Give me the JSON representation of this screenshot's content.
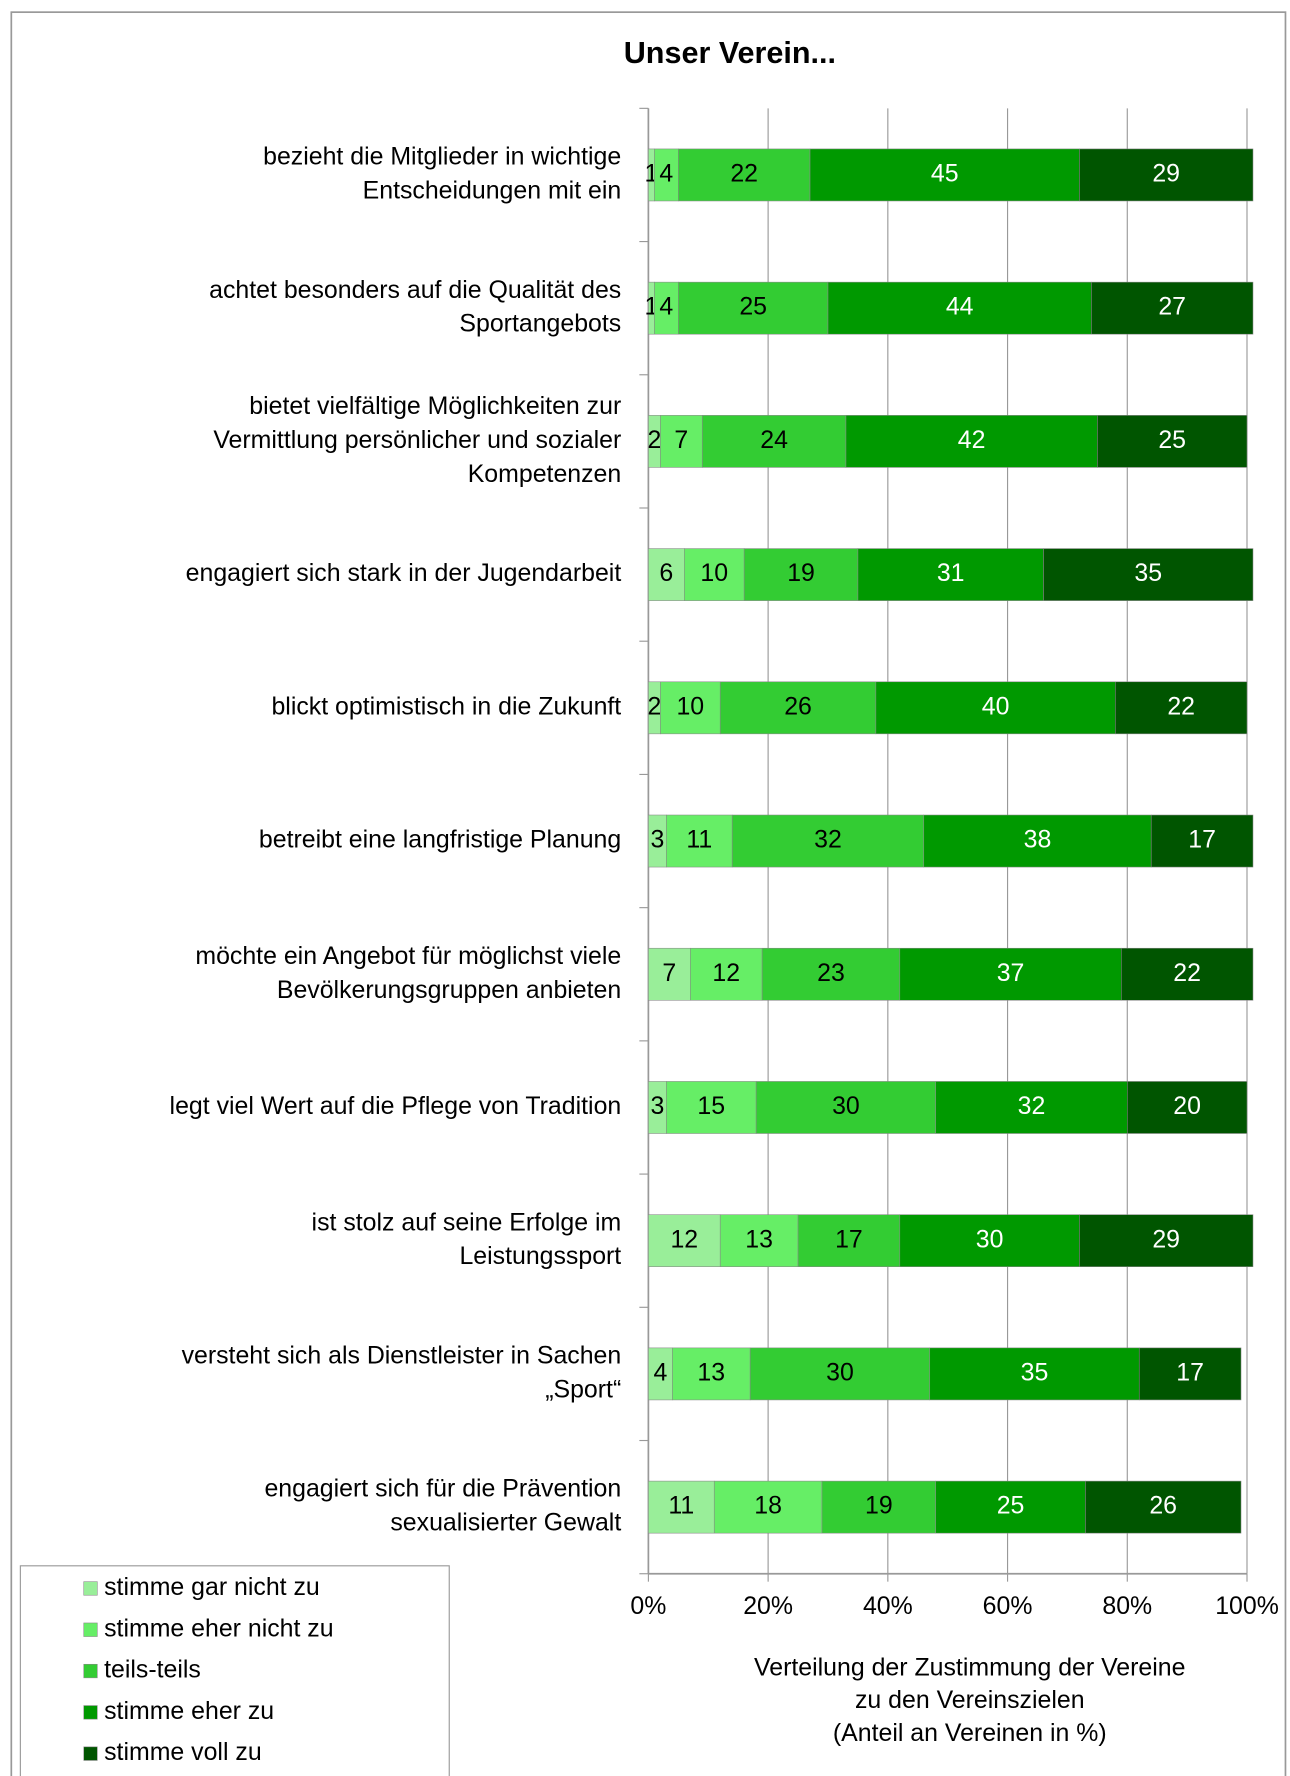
{
  "chart_data": {
    "type": "stacked-bar-horizontal",
    "title": "Unser Verein...",
    "x_label": [
      "Verteilung der Zustimmung der Vereine",
      "zu den Vereinszielen",
      "(Anteil an Vereinen in %)"
    ],
    "categories": [
      [
        "bezieht die Mitglieder in wichtige",
        "Entscheidungen mit ein"
      ],
      [
        "achtet besonders auf die Qualität des",
        "Sportangebots"
      ],
      [
        "bietet vielfältige Möglichkeiten zur",
        "Vermittlung persönlicher und sozialer",
        "Kompetenzen"
      ],
      [
        "engagiert sich stark in der Jugendarbeit"
      ],
      [
        "blickt optimistisch in die Zukunft"
      ],
      [
        "betreibt eine langfristige Planung"
      ],
      [
        "möchte ein Angebot für möglichst viele",
        "Bevölkerungsgruppen anbieten"
      ],
      [
        "legt viel Wert auf die Pflege von Tradition"
      ],
      [
        "ist stolz auf seine Erfolge im",
        "Leistungssport"
      ],
      [
        "versteht sich als Dienstleister in Sachen",
        "„Sport“"
      ],
      [
        "engagiert sich für die Prävention",
        "sexualisierter Gewalt"
      ]
    ],
    "series": [
      {
        "name": "stimme gar nicht zu",
        "color": "#99ee99",
        "label_color": "#000000",
        "values": [
          1,
          1,
          2,
          6,
          2,
          3,
          7,
          3,
          12,
          4,
          11
        ]
      },
      {
        "name": "stimme eher nicht zu",
        "color": "#66ee66",
        "label_color": "#000000",
        "values": [
          4,
          4,
          7,
          10,
          10,
          11,
          12,
          15,
          13,
          13,
          18
        ]
      },
      {
        "name": "teils-teils",
        "color": "#33cc33",
        "label_color": "#000000",
        "values": [
          22,
          25,
          24,
          19,
          26,
          32,
          23,
          30,
          17,
          30,
          19
        ]
      },
      {
        "name": "stimme eher zu",
        "color": "#009900",
        "label_color": "#ffffff",
        "values": [
          45,
          44,
          42,
          31,
          40,
          38,
          37,
          32,
          30,
          35,
          25
        ]
      },
      {
        "name": "stimme voll zu",
        "color": "#005500",
        "label_color": "#ffffff",
        "values": [
          29,
          27,
          25,
          35,
          22,
          17,
          22,
          20,
          29,
          17,
          26
        ]
      }
    ],
    "xlim": [
      0,
      100
    ],
    "xticks": [
      {
        "value": 0,
        "label": "0%"
      },
      {
        "value": 20,
        "label": "20%"
      },
      {
        "value": 40,
        "label": "40%"
      },
      {
        "value": 60,
        "label": "60%"
      },
      {
        "value": 80,
        "label": "80%"
      },
      {
        "value": 100,
        "label": "100%"
      }
    ],
    "grid": true,
    "legend": "bottom-left"
  }
}
